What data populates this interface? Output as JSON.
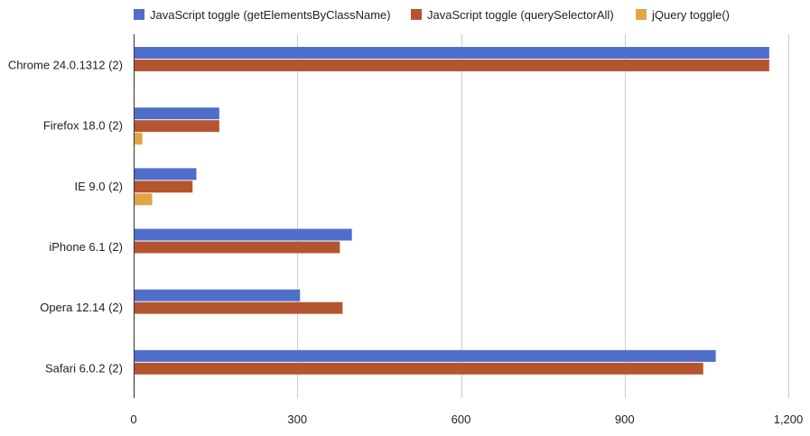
{
  "chart_data": {
    "type": "bar",
    "orientation": "horizontal",
    "title": "",
    "xlabel": "",
    "ylabel": "",
    "categories": [
      "Chrome 24.0.1312 (2)",
      "Firefox 18.0 (2)",
      "IE 9.0 (2)",
      "iPhone 6.1 (2)",
      "Opera 12.14 (2)",
      "Safari 6.0.2 (2)"
    ],
    "series": [
      {
        "name": "JavaScript toggle (getElementsByClassName)",
        "color": "#4f6ec9",
        "values": [
          1165,
          157,
          115,
          400,
          305,
          1067
        ]
      },
      {
        "name": "JavaScript toggle (querySelectorAll)",
        "color": "#b5552f",
        "values": [
          1165,
          157,
          108,
          378,
          383,
          1044
        ]
      },
      {
        "name": "jQuery toggle()",
        "color": "#e2a545",
        "values": [
          2,
          16,
          34,
          0,
          0,
          2
        ]
      }
    ],
    "xlim": [
      0,
      1200
    ],
    "xticks": [
      0,
      300,
      600,
      900,
      1200
    ],
    "xtick_labels": [
      "0",
      "300",
      "600",
      "900",
      "1,200"
    ],
    "grid": true,
    "legend_position": "top"
  }
}
